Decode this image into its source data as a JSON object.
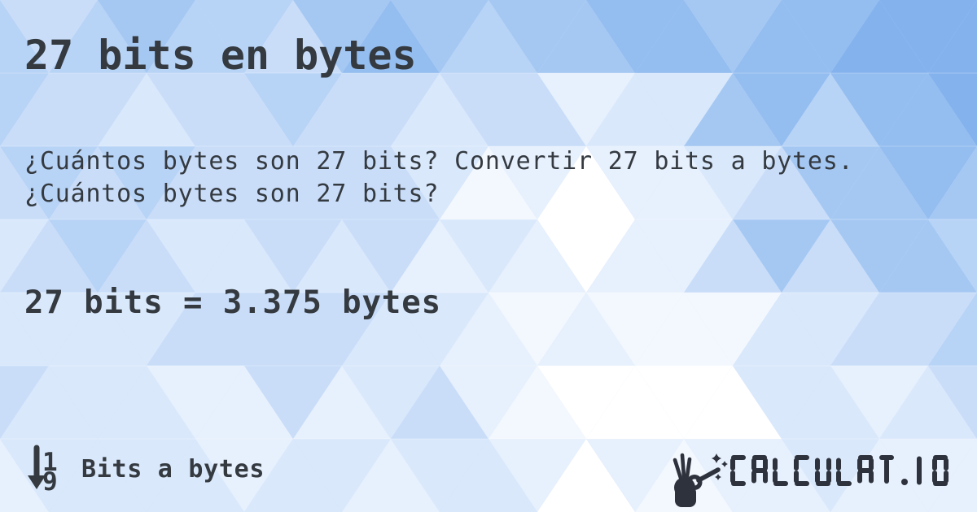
{
  "header": {
    "title": "27 bits en bytes"
  },
  "body": {
    "question": "¿Cuántos bytes son 27 bits? Convertir 27 bits a bytes. ¿Cuántos bytes son 27 bits?",
    "result": "27 bits = 3.375 bytes"
  },
  "footer": {
    "category": {
      "icon": "sort-numeric-down-icon",
      "top_digit": "1",
      "bottom_digit": "9",
      "label": "Bits a bytes"
    },
    "brand": {
      "icon": "hand-magic-wand-icon",
      "name": "CALCULAT.IO"
    }
  },
  "colors": {
    "text": "#343a40",
    "logo": "#2d323c",
    "background_palette": [
      "#ffffff",
      "#f3f8fe",
      "#e7f0fd",
      "#d9e8fb",
      "#c9ddf9",
      "#b7d3f6",
      "#a5c8f3",
      "#94bdf0",
      "#84b2ed"
    ]
  }
}
